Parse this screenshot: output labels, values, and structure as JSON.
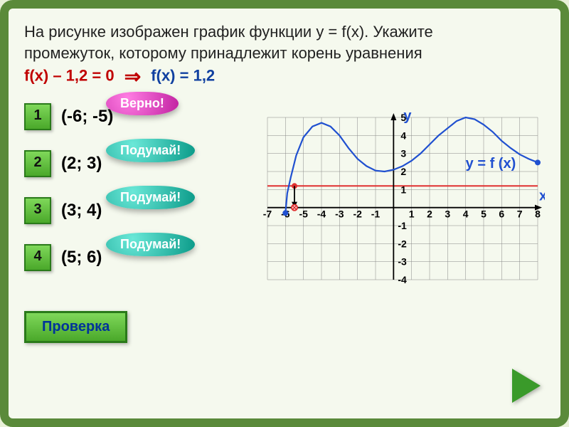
{
  "question": {
    "line1": "На рисунке изображен график функции   y = f(x). Укажите",
    "line2": "промежуток, которому принадлежит корень уравнения",
    "eq_left": "f(x) – 1,2  = 0",
    "eq_right": "f(x) = 1,2"
  },
  "answers": [
    {
      "num": "1",
      "text": "(-6; -5)",
      "bubble": "Верно!",
      "bubble_class": "pink"
    },
    {
      "num": "2",
      "text": "(2; 3)",
      "bubble": "Подумай!",
      "bubble_class": "teal"
    },
    {
      "num": "3",
      "text": "(3; 4)",
      "bubble": "Подумай!",
      "bubble_class": "teal"
    },
    {
      "num": "4",
      "text": "(5; 6)",
      "bubble": "Подумай!",
      "bubble_class": "teal"
    }
  ],
  "check_button": "Проверка",
  "graph": {
    "x_min": -7,
    "x_max": 8,
    "y_min": -4,
    "y_max": 5,
    "x_ticks": [
      -7,
      -6,
      -5,
      -4,
      -3,
      -2,
      -1,
      1,
      2,
      3,
      4,
      5,
      6,
      7,
      8
    ],
    "y_ticks_pos": [
      1,
      2,
      3,
      4,
      5
    ],
    "y_ticks_neg": [
      -1,
      -2,
      -3,
      -4
    ],
    "axis_label_x": "х",
    "axis_label_y": "у",
    "func_label": "y = f (x)",
    "axis_font_size": 14,
    "label_font_size": 20,
    "grid_color": "#888",
    "axis_color": "#000",
    "red_line_color": "#e03030",
    "curve_color": "#2050d0",
    "background": "#f5f9ee",
    "red_line_y": 1.2,
    "root_point_x": -5.5,
    "curve_points": [
      [
        -6,
        -0.3
      ],
      [
        -5.9,
        0.8
      ],
      [
        -5.7,
        1.7
      ],
      [
        -5.4,
        2.9
      ],
      [
        -5,
        3.9
      ],
      [
        -4.5,
        4.5
      ],
      [
        -4,
        4.7
      ],
      [
        -3.5,
        4.5
      ],
      [
        -3,
        4
      ],
      [
        -2.5,
        3.3
      ],
      [
        -2,
        2.7
      ],
      [
        -1.5,
        2.3
      ],
      [
        -1,
        2.05
      ],
      [
        -0.5,
        2
      ],
      [
        0,
        2.1
      ],
      [
        0.5,
        2.3
      ],
      [
        1,
        2.6
      ],
      [
        1.5,
        3
      ],
      [
        2,
        3.5
      ],
      [
        2.5,
        4
      ],
      [
        3,
        4.4
      ],
      [
        3.5,
        4.8
      ],
      [
        4,
        5
      ],
      [
        4.5,
        4.9
      ],
      [
        5,
        4.6
      ],
      [
        5.5,
        4.2
      ],
      [
        6,
        3.7
      ],
      [
        6.5,
        3.3
      ],
      [
        7,
        2.95
      ],
      [
        7.5,
        2.7
      ],
      [
        8,
        2.5
      ]
    ],
    "end_dot_radius": 4
  }
}
